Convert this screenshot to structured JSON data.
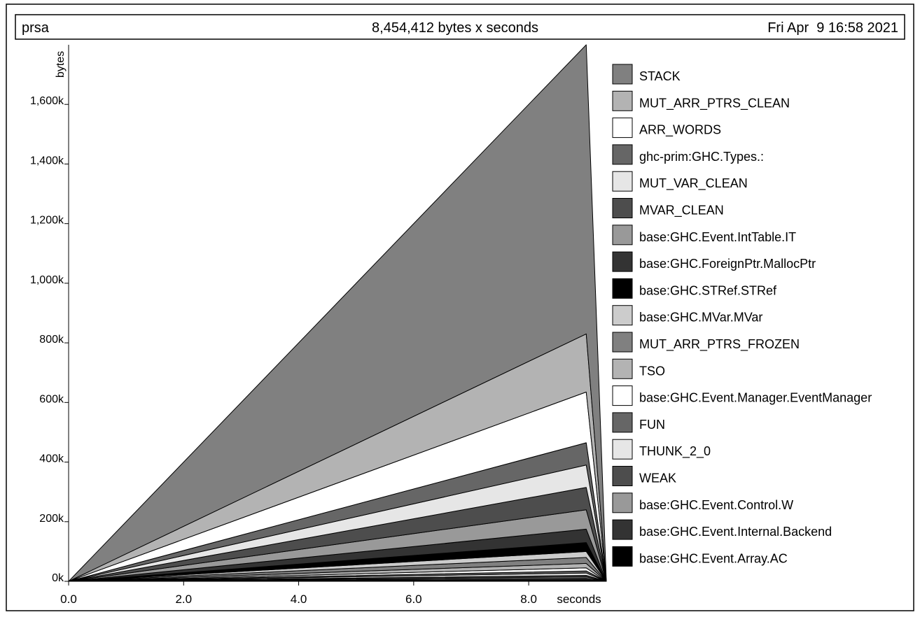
{
  "chart_data": {
    "type": "area",
    "title": "8,454,412 bytes x seconds",
    "program": "prsa",
    "date": "Fri Apr  9 16:58 2021",
    "xlabel": "seconds",
    "ylabel": "bytes",
    "xlim": [
      0,
      9.35
    ],
    "ylim": [
      0,
      1800000
    ],
    "x_ticks": [
      0,
      2,
      4,
      6,
      8
    ],
    "x_tick_labels": [
      "0.0",
      "2.0",
      "4.0",
      "6.0",
      "8.0"
    ],
    "y_ticks": [
      0,
      200000,
      400000,
      600000,
      800000,
      1000000,
      1200000,
      1400000,
      1600000
    ],
    "y_tick_labels": [
      "0k",
      "200k",
      "400k",
      "600k",
      "800k",
      "1,000k",
      "1,200k",
      "1,400k",
      "1,600k"
    ],
    "x": [
      0,
      9.0,
      9.35
    ],
    "stacked": true,
    "legend_position": "right",
    "series": [
      {
        "name": "base:GHC.Event.Array.AC",
        "color": "#000000",
        "values": [
          0,
          5000,
          0
        ]
      },
      {
        "name": "base:GHC.Event.Internal.Backend",
        "color": "#333333",
        "values": [
          0,
          5000,
          0
        ]
      },
      {
        "name": "base:GHC.Event.Control.W",
        "color": "#999999",
        "values": [
          0,
          5000,
          0
        ]
      },
      {
        "name": "WEAK",
        "color": "#4d4d4d",
        "values": [
          0,
          5000,
          0
        ]
      },
      {
        "name": "THUNK_2_0",
        "color": "#e6e6e6",
        "values": [
          0,
          8000,
          0
        ]
      },
      {
        "name": "FUN",
        "color": "#666666",
        "values": [
          0,
          7000,
          0
        ]
      },
      {
        "name": "base:GHC.Event.Manager.EventManager",
        "color": "#ffffff",
        "values": [
          0,
          10000,
          0
        ]
      },
      {
        "name": "TSO",
        "color": "#b3b3b3",
        "values": [
          0,
          15000,
          0
        ]
      },
      {
        "name": "MUT_ARR_PTRS_FROZEN",
        "color": "#808080",
        "values": [
          0,
          20000,
          0
        ]
      },
      {
        "name": "base:GHC.MVar.MVar",
        "color": "#cccccc",
        "values": [
          0,
          20000,
          0
        ]
      },
      {
        "name": "base:GHC.STRef.STRef",
        "color": "#000000",
        "values": [
          0,
          30000,
          0
        ]
      },
      {
        "name": "base:GHC.ForeignPtr.MallocPtr",
        "color": "#333333",
        "values": [
          0,
          45000,
          0
        ]
      },
      {
        "name": "base:GHC.Event.IntTable.IT",
        "color": "#999999",
        "values": [
          0,
          65000,
          0
        ]
      },
      {
        "name": "MVAR_CLEAN",
        "color": "#4d4d4d",
        "values": [
          0,
          75000,
          0
        ]
      },
      {
        "name": "MUT_VAR_CLEAN",
        "color": "#e6e6e6",
        "values": [
          0,
          75000,
          0
        ]
      },
      {
        "name": "ghc-prim:GHC.Types.:",
        "color": "#666666",
        "values": [
          0,
          75000,
          0
        ]
      },
      {
        "name": "ARR_WORDS",
        "color": "#ffffff",
        "values": [
          0,
          170000,
          0
        ]
      },
      {
        "name": "MUT_ARR_PTRS_CLEAN",
        "color": "#b3b3b3",
        "values": [
          0,
          195000,
          0
        ]
      },
      {
        "name": "STACK",
        "color": "#808080",
        "values": [
          0,
          970000,
          0
        ]
      }
    ],
    "legend": [
      {
        "name": "STACK",
        "color": "#808080"
      },
      {
        "name": "MUT_ARR_PTRS_CLEAN",
        "color": "#b3b3b3"
      },
      {
        "name": "ARR_WORDS",
        "color": "#ffffff"
      },
      {
        "name": "ghc-prim:GHC.Types.:",
        "color": "#666666"
      },
      {
        "name": "MUT_VAR_CLEAN",
        "color": "#e6e6e6"
      },
      {
        "name": "MVAR_CLEAN",
        "color": "#4d4d4d"
      },
      {
        "name": "base:GHC.Event.IntTable.IT",
        "color": "#999999"
      },
      {
        "name": "base:GHC.ForeignPtr.MallocPtr",
        "color": "#333333"
      },
      {
        "name": "base:GHC.STRef.STRef",
        "color": "#000000"
      },
      {
        "name": "base:GHC.MVar.MVar",
        "color": "#cccccc"
      },
      {
        "name": "MUT_ARR_PTRS_FROZEN",
        "color": "#808080"
      },
      {
        "name": "TSO",
        "color": "#b3b3b3"
      },
      {
        "name": "base:GHC.Event.Manager.EventManager",
        "color": "#ffffff"
      },
      {
        "name": "FUN",
        "color": "#666666"
      },
      {
        "name": "THUNK_2_0",
        "color": "#e6e6e6"
      },
      {
        "name": "WEAK",
        "color": "#4d4d4d"
      },
      {
        "name": "base:GHC.Event.Control.W",
        "color": "#999999"
      },
      {
        "name": "base:GHC.Event.Internal.Backend",
        "color": "#333333"
      },
      {
        "name": "base:GHC.Event.Array.AC",
        "color": "#000000"
      }
    ]
  }
}
